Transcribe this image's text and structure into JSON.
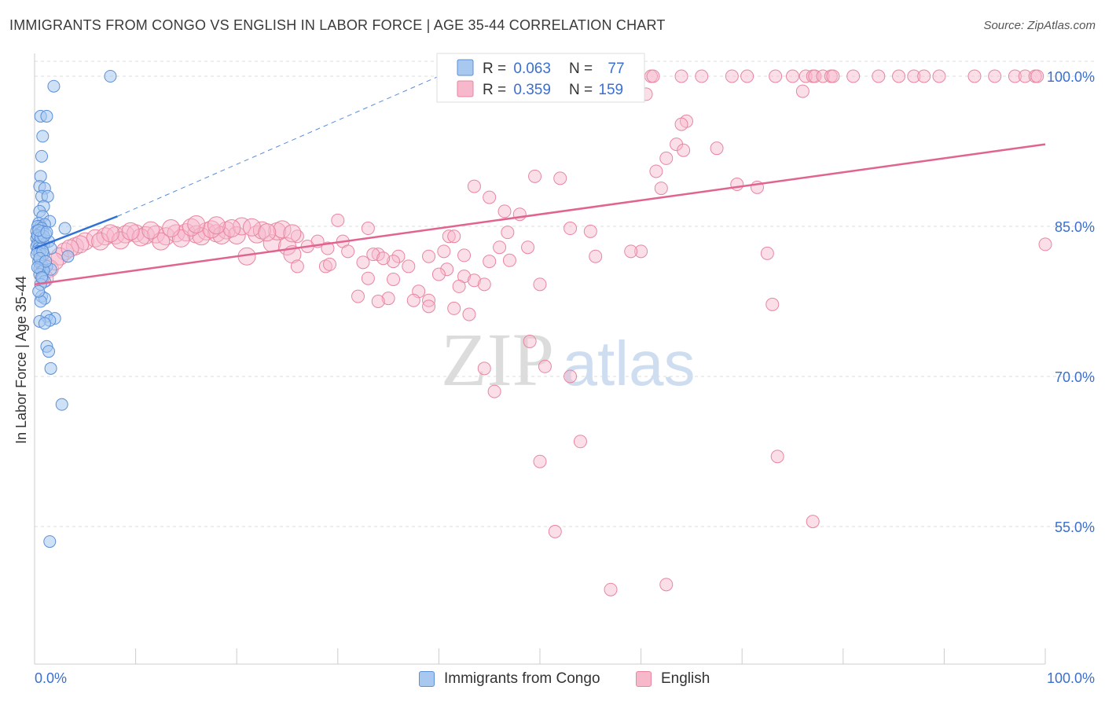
{
  "header": {
    "title": "IMMIGRANTS FROM CONGO VS ENGLISH IN LABOR FORCE | AGE 35-44 CORRELATION CHART",
    "source": "Source: ZipAtlas.com"
  },
  "watermark": {
    "zip": "ZIP",
    "atlas": "atlas"
  },
  "colors": {
    "blue_fill": "#a8c8f0",
    "blue_stroke": "#5b8fd6",
    "blue_line": "#2f6fd6",
    "pink_fill": "#f7b8cc",
    "pink_stroke": "#e8869f",
    "pink_line": "#e0648f",
    "value_text": "#3a6fd0",
    "grid": "#dddddd"
  },
  "legend_top": {
    "rows": [
      {
        "r_label": "R = ",
        "r_value": "0.063",
        "n_label": "N = ",
        "n_value": "77"
      },
      {
        "r_label": "R = ",
        "r_value": "0.359",
        "n_label": "N = ",
        "n_value": "159"
      }
    ]
  },
  "legend_bottom": [
    "Immigrants from Congo",
    "English"
  ],
  "chart_data": {
    "type": "scatter",
    "title": "IMMIGRANTS FROM CONGO VS ENGLISH IN LABOR FORCE | AGE 35-44 CORRELATION CHART",
    "xlabel": "",
    "ylabel": "In Labor Force | Age 35-44",
    "xlim": [
      0,
      100
    ],
    "ylim": [
      40,
      102
    ],
    "x_tick_labels": [
      "0.0%",
      "100.0%"
    ],
    "y_ticks": [
      55,
      70,
      85,
      100
    ],
    "y_tick_labels": [
      "55.0%",
      "70.0%",
      "85.0%",
      "100.0%"
    ],
    "series": [
      {
        "name": "Immigrants from Congo",
        "R": 0.063,
        "N": 77,
        "trend": {
          "x0": 0,
          "y0": 82.8,
          "x1": 8.2,
          "y1": 86.0,
          "dashed_to": [
            40,
            100
          ]
        },
        "points": [
          [
            7.5,
            100
          ],
          [
            1.9,
            99
          ],
          [
            0.6,
            96
          ],
          [
            1.2,
            96
          ],
          [
            0.8,
            94
          ],
          [
            0.7,
            92
          ],
          [
            0.6,
            90
          ],
          [
            0.5,
            89
          ],
          [
            1.0,
            88.8
          ],
          [
            0.7,
            88
          ],
          [
            1.3,
            88
          ],
          [
            0.9,
            87
          ],
          [
            0.5,
            86.5
          ],
          [
            0.8,
            86
          ],
          [
            1.5,
            85.5
          ],
          [
            0.4,
            85.3
          ],
          [
            0.6,
            85
          ],
          [
            1.0,
            85.2
          ],
          [
            0.3,
            85
          ],
          [
            0.7,
            84.8
          ],
          [
            3.0,
            84.8
          ],
          [
            0.2,
            84.5
          ],
          [
            0.5,
            84.3
          ],
          [
            0.8,
            84.5
          ],
          [
            1.1,
            84.2
          ],
          [
            0.4,
            84
          ],
          [
            0.2,
            83.8
          ],
          [
            0.6,
            83.6
          ],
          [
            1.4,
            83.5
          ],
          [
            0.3,
            83.3
          ],
          [
            0.5,
            83.2
          ],
          [
            0.9,
            83.2
          ],
          [
            0.2,
            83
          ],
          [
            0.4,
            82.8
          ],
          [
            0.7,
            82.8
          ],
          [
            1.6,
            82.8
          ],
          [
            0.3,
            82.5
          ],
          [
            0.5,
            82.3
          ],
          [
            0.9,
            82.2
          ],
          [
            3.3,
            82
          ],
          [
            0.4,
            81.5
          ],
          [
            0.6,
            81.2
          ],
          [
            0.8,
            81
          ],
          [
            1.2,
            81
          ],
          [
            0.5,
            80.8
          ],
          [
            0.7,
            80.5
          ],
          [
            1.6,
            80.7
          ],
          [
            0.9,
            80.6
          ],
          [
            0.5,
            80.2
          ],
          [
            0.8,
            79.8
          ],
          [
            1.0,
            79.5
          ],
          [
            0.6,
            79.2
          ],
          [
            0.7,
            78
          ],
          [
            1.0,
            77.8
          ],
          [
            0.6,
            77.5
          ],
          [
            1.2,
            76
          ],
          [
            2.0,
            75.8
          ],
          [
            1.5,
            75.6
          ],
          [
            0.5,
            75.5
          ],
          [
            1.0,
            75.3
          ],
          [
            1.2,
            73
          ],
          [
            1.4,
            72.5
          ],
          [
            1.6,
            70.8
          ],
          [
            2.7,
            67.2
          ],
          [
            1.5,
            53.5
          ],
          [
            0.3,
            84.1
          ],
          [
            0.6,
            83.9
          ],
          [
            0.9,
            84
          ],
          [
            0.4,
            84.6
          ],
          [
            1.2,
            84.4
          ],
          [
            0.2,
            82.2
          ],
          [
            0.8,
            82.5
          ],
          [
            0.5,
            81.8
          ],
          [
            1.1,
            81.5
          ],
          [
            0.3,
            80.9
          ],
          [
            0.7,
            79.9
          ],
          [
            0.4,
            78.5
          ]
        ]
      },
      {
        "name": "English",
        "R": 0.359,
        "N": 159,
        "trend": {
          "x0": 0,
          "y0": 79.2,
          "x1": 100,
          "y1": 93.2
        },
        "points": [
          [
            61,
            100
          ],
          [
            61.2,
            100
          ],
          [
            64,
            100
          ],
          [
            66,
            100
          ],
          [
            69,
            100
          ],
          [
            70.5,
            100
          ],
          [
            73.3,
            100
          ],
          [
            75,
            100
          ],
          [
            76.3,
            100
          ],
          [
            77,
            100
          ],
          [
            77.2,
            100
          ],
          [
            78,
            100
          ],
          [
            78.8,
            100
          ],
          [
            79,
            100
          ],
          [
            81,
            100
          ],
          [
            83.5,
            100
          ],
          [
            85.5,
            100
          ],
          [
            87,
            100
          ],
          [
            88,
            100
          ],
          [
            89.5,
            100
          ],
          [
            93,
            100
          ],
          [
            95,
            100
          ],
          [
            97,
            100
          ],
          [
            98,
            100
          ],
          [
            99,
            100
          ],
          [
            99.2,
            100
          ],
          [
            58,
            99
          ],
          [
            60.5,
            98.2
          ],
          [
            76,
            98.5
          ],
          [
            64.5,
            95.5
          ],
          [
            64,
            95.2
          ],
          [
            63.5,
            93.2
          ],
          [
            67.5,
            92.8
          ],
          [
            64.2,
            92.6
          ],
          [
            62.5,
            91.8
          ],
          [
            61.5,
            90.5
          ],
          [
            49.5,
            90
          ],
          [
            52,
            89.8
          ],
          [
            69.5,
            89.2
          ],
          [
            71.5,
            88.9
          ],
          [
            62,
            88.8
          ],
          [
            43.5,
            89
          ],
          [
            45,
            87.9
          ],
          [
            46.5,
            86.5
          ],
          [
            48,
            86.2
          ],
          [
            30,
            85.6
          ],
          [
            33,
            84.8
          ],
          [
            53,
            84.8
          ],
          [
            55,
            84.5
          ],
          [
            46.8,
            84.4
          ],
          [
            41,
            84
          ],
          [
            41.5,
            84
          ],
          [
            26,
            84
          ],
          [
            28,
            83.5
          ],
          [
            30.5,
            83.5
          ],
          [
            23.5,
            83.3
          ],
          [
            25,
            83
          ],
          [
            27,
            83
          ],
          [
            29,
            82.8
          ],
          [
            31,
            82.5
          ],
          [
            46,
            82.9
          ],
          [
            48.8,
            82.9
          ],
          [
            40.5,
            82.5
          ],
          [
            60,
            82.5
          ],
          [
            59,
            82.5
          ],
          [
            72.5,
            82.3
          ],
          [
            100,
            83.2
          ],
          [
            34,
            82.2
          ],
          [
            21,
            82
          ],
          [
            25.5,
            82.2
          ],
          [
            33.5,
            82.2
          ],
          [
            36,
            82
          ],
          [
            39,
            82
          ],
          [
            42.5,
            82.1
          ],
          [
            55.5,
            82
          ],
          [
            45,
            81.5
          ],
          [
            32.5,
            81.4
          ],
          [
            35.5,
            81.5
          ],
          [
            26,
            81
          ],
          [
            28.8,
            81
          ],
          [
            29.2,
            81.2
          ],
          [
            37,
            81
          ],
          [
            34.5,
            81.8
          ],
          [
            47,
            81.6
          ],
          [
            40.8,
            80.7
          ],
          [
            40,
            80.2
          ],
          [
            42.5,
            80
          ],
          [
            43.5,
            79.6
          ],
          [
            33,
            79.8
          ],
          [
            35.5,
            79.7
          ],
          [
            42,
            79
          ],
          [
            44.5,
            79.2
          ],
          [
            50,
            79.2
          ],
          [
            38,
            78.5
          ],
          [
            32,
            78
          ],
          [
            35,
            77.8
          ],
          [
            37.5,
            77.6
          ],
          [
            39,
            77.6
          ],
          [
            73,
            77.2
          ],
          [
            34,
            77.5
          ],
          [
            39,
            77
          ],
          [
            41.5,
            76.8
          ],
          [
            43,
            76.2
          ],
          [
            49,
            73.5
          ],
          [
            50.5,
            71
          ],
          [
            44.5,
            70.8
          ],
          [
            53,
            70
          ],
          [
            45.5,
            68.5
          ],
          [
            54,
            63.5
          ],
          [
            50,
            61.5
          ],
          [
            73.5,
            62
          ],
          [
            77,
            55.5
          ],
          [
            51.5,
            54.5
          ],
          [
            62.5,
            49.2
          ],
          [
            57,
            48.7
          ],
          [
            4,
            83
          ],
          [
            5,
            83.5
          ],
          [
            6,
            83.8
          ],
          [
            7,
            84
          ],
          [
            8,
            84.1
          ],
          [
            9,
            84.2
          ],
          [
            10,
            84.3
          ],
          [
            11,
            84.1
          ],
          [
            12,
            84.2
          ],
          [
            13,
            84
          ],
          [
            14,
            84.3
          ],
          [
            15,
            84.4
          ],
          [
            16,
            84.2
          ],
          [
            17,
            84.5
          ],
          [
            18,
            84.3
          ],
          [
            19,
            84.6
          ],
          [
            20,
            84.1
          ],
          [
            22,
            84.2
          ],
          [
            24,
            84.5
          ],
          [
            3,
            82.5
          ],
          [
            2.5,
            82
          ],
          [
            4.5,
            83.2
          ],
          [
            6.5,
            83.5
          ],
          [
            8.5,
            83.6
          ],
          [
            10.5,
            83.9
          ],
          [
            12.5,
            83.5
          ],
          [
            14.5,
            83.8
          ],
          [
            16.5,
            84
          ],
          [
            18.5,
            84.1
          ],
          [
            1.5,
            80.8
          ],
          [
            2,
            81.5
          ],
          [
            1,
            79.8
          ],
          [
            3.5,
            82.8
          ],
          [
            20.5,
            85
          ],
          [
            22.5,
            84.6
          ],
          [
            17.5,
            84.7
          ],
          [
            15.5,
            84.9
          ],
          [
            11.5,
            84.6
          ],
          [
            13.5,
            84.8
          ],
          [
            9.5,
            84.5
          ],
          [
            7.5,
            84.3
          ],
          [
            19.5,
            84.8
          ],
          [
            21.5,
            84.9
          ],
          [
            18,
            85.1
          ],
          [
            24.5,
            84.7
          ],
          [
            23,
            84.4
          ],
          [
            25.5,
            84.3
          ],
          [
            16,
            85.2
          ]
        ]
      }
    ]
  }
}
